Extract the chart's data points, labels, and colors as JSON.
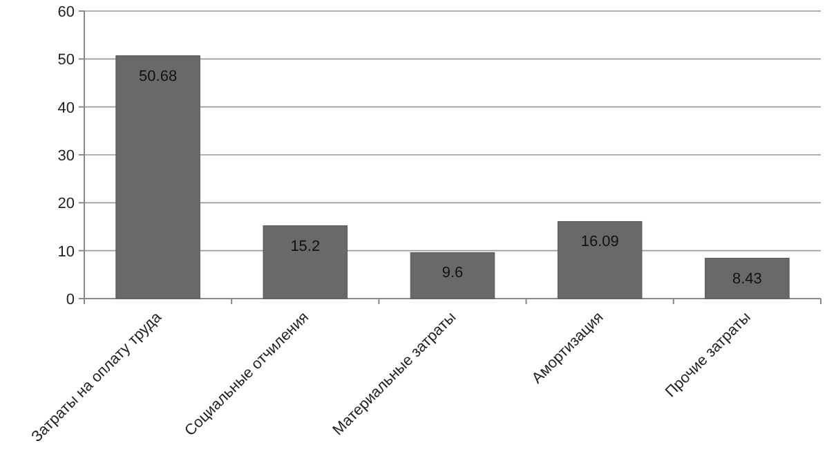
{
  "chart_data": {
    "type": "bar",
    "categories": [
      "Затраты на оплату труда",
      "Социальные отчиления",
      "Материальные затраты",
      "Амортизация",
      "Прочие затраты"
    ],
    "values": [
      50.68,
      15.2,
      9.6,
      16.09,
      8.43
    ],
    "color": "#696969",
    "ylim": [
      0,
      60
    ],
    "yticks": [
      0,
      10,
      20,
      30,
      40,
      50,
      60
    ],
    "grid": "y",
    "data_labels": true
  }
}
